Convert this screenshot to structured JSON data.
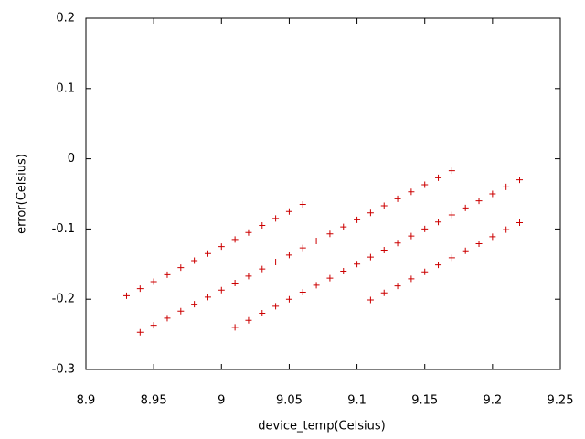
{
  "chart_data": {
    "type": "scatter",
    "xlabel": "device_temp(Celsius)",
    "ylabel": "error(Celsius)",
    "xlim": [
      8.9,
      9.25
    ],
    "xticks": [
      8.9,
      8.95,
      9,
      9.05,
      9.1,
      9.15,
      9.2,
      9.25
    ],
    "ylim": [
      -0.3,
      0.2
    ],
    "yticks": [
      -0.3,
      -0.2,
      -0.1,
      0,
      0.1,
      0.2
    ],
    "color": "#cc0000",
    "grid": false,
    "x": [
      8.93,
      8.94,
      8.95,
      8.96,
      8.97,
      8.98,
      8.99,
      9.0,
      9.01,
      9.02,
      9.03,
      9.04,
      9.05,
      9.06,
      8.94,
      8.95,
      8.96,
      8.97,
      8.98,
      8.99,
      9.0,
      9.01,
      9.02,
      9.03,
      9.04,
      9.05,
      9.06,
      9.07,
      9.08,
      9.09,
      9.1,
      9.11,
      9.12,
      9.13,
      9.14,
      9.15,
      9.16,
      9.17,
      9.01,
      9.02,
      9.03,
      9.04,
      9.05,
      9.06,
      9.07,
      9.08,
      9.09,
      9.1,
      9.11,
      9.12,
      9.13,
      9.14,
      9.15,
      9.16,
      9.17,
      9.18,
      9.19,
      9.2,
      9.21,
      9.22,
      9.11,
      9.12,
      9.13,
      9.14,
      9.15,
      9.16,
      9.17,
      9.18,
      9.19,
      9.2,
      9.21,
      9.22
    ],
    "values": [
      -0.195,
      -0.185,
      -0.175,
      -0.165,
      -0.155,
      -0.145,
      -0.135,
      -0.125,
      -0.115,
      -0.105,
      -0.095,
      -0.085,
      -0.075,
      -0.065,
      -0.247,
      -0.237,
      -0.227,
      -0.217,
      -0.207,
      -0.197,
      -0.187,
      -0.177,
      -0.167,
      -0.157,
      -0.147,
      -0.137,
      -0.127,
      -0.117,
      -0.107,
      -0.097,
      -0.087,
      -0.077,
      -0.067,
      -0.057,
      -0.047,
      -0.037,
      -0.027,
      -0.017,
      -0.24,
      -0.23,
      -0.22,
      -0.21,
      -0.2,
      -0.19,
      -0.18,
      -0.17,
      -0.16,
      -0.15,
      -0.14,
      -0.13,
      -0.12,
      -0.11,
      -0.1,
      -0.09,
      -0.08,
      -0.07,
      -0.06,
      -0.05,
      -0.04,
      -0.03,
      -0.201,
      -0.191,
      -0.181,
      -0.171,
      -0.161,
      -0.151,
      -0.141,
      -0.131,
      -0.121,
      -0.111,
      -0.101,
      -0.091
    ]
  }
}
